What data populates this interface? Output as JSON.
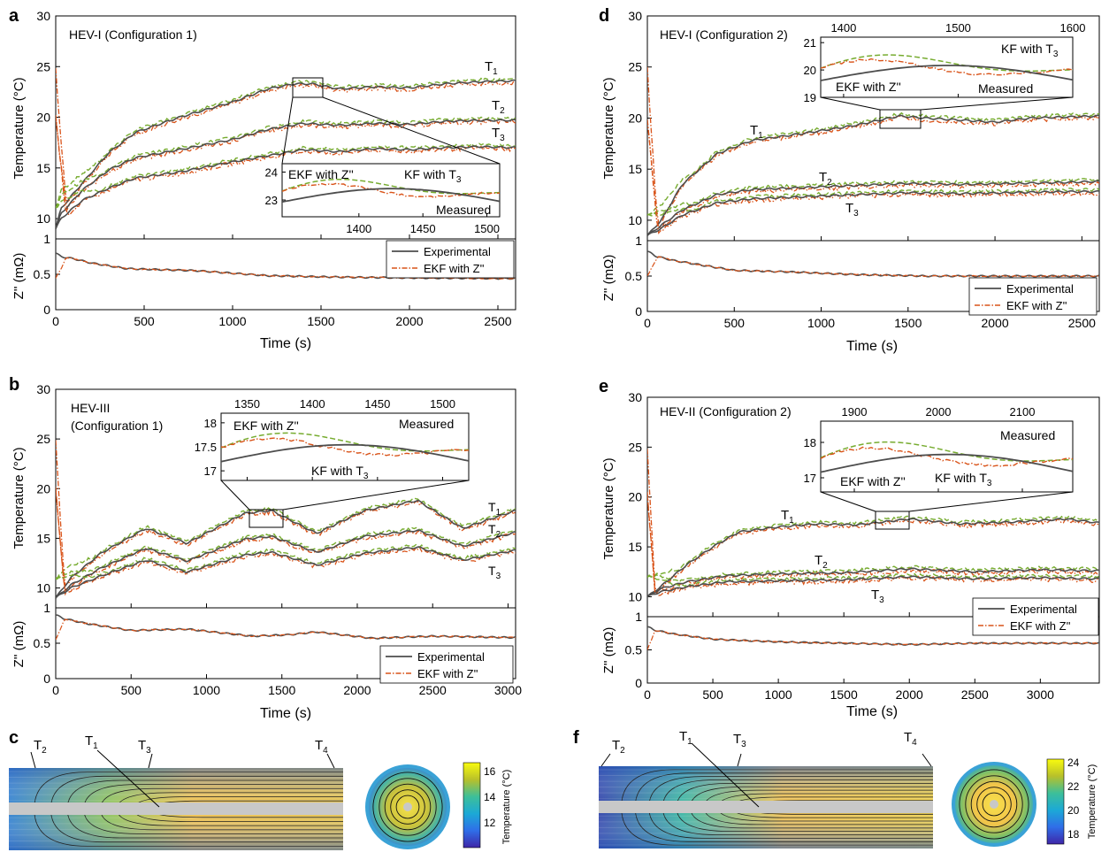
{
  "figure": {
    "panels": {
      "a": {
        "letter": "a",
        "title": "HEV-I (Configuration 1)"
      },
      "b": {
        "letter": "b",
        "title_line1": "HEV-III",
        "title_line2": "(Configuration 1)"
      },
      "d": {
        "letter": "d",
        "title": "HEV-I (Configuration 2)"
      },
      "e": {
        "letter": "e",
        "title": "HEV-II (Configuration 2)"
      },
      "c": {
        "letter": "c",
        "cbar_title": "Temperature (°C)",
        "cbar_ticks": [
          "16",
          "14",
          "12"
        ]
      },
      "f": {
        "letter": "f",
        "cbar_title": "Temperature (°C)",
        "cbar_ticks": [
          "24",
          "22",
          "20",
          "18"
        ]
      }
    },
    "labels": {
      "ylabel_temp": "Temperature (°C)",
      "ylabel_z": "Z'' (mΩ)",
      "xlabel": "Time (s)",
      "legend_experimental": "Experimental",
      "legend_ekf": "EKF with Z''",
      "inset_ekf": "EKF with Z''",
      "inset_kf": "KF with T",
      "inset_kf_sub": "3",
      "inset_measured": "Measured",
      "sensor_T1": "T",
      "sensor_T2": "T",
      "sensor_T3": "T",
      "sensor_T4": "T",
      "sub1": "1",
      "sub2": "2",
      "sub3": "3",
      "sub4": "4"
    },
    "colors": {
      "measured": "#4d4d4d",
      "ekf": "#d95319",
      "kf": "#77ac30",
      "cbar": [
        "#3e26a8",
        "#2f6ee8",
        "#1ca9d6",
        "#3dbf99",
        "#9bbf2f",
        "#e8b92c",
        "#f9fb0e"
      ]
    }
  },
  "chart_data": [
    {
      "panel": "a",
      "type": "line",
      "xlim": [
        0,
        2600
      ],
      "ylim_temp": [
        8,
        30
      ],
      "ylim_z": [
        0,
        1
      ],
      "xticks": [
        0,
        500,
        1000,
        1500,
        2000,
        2500
      ],
      "yticks_temp": [
        10,
        15,
        20,
        25,
        30
      ],
      "yticks_z": [
        0,
        0.5,
        1
      ],
      "series": [
        {
          "name": "T1",
          "x": [
            0,
            30,
            150,
            300,
            450,
            700,
            1000,
            1200,
            1350,
            1450,
            1600,
            1800,
            2000,
            2200,
            2400,
            2600
          ],
          "y": [
            9,
            11,
            13.5,
            16.5,
            18.5,
            20,
            21.5,
            22.8,
            23.3,
            23.3,
            22.8,
            23,
            22.9,
            23.3,
            23.5,
            23.6
          ]
        },
        {
          "name": "T2",
          "x": [
            0,
            30,
            150,
            300,
            450,
            700,
            1000,
            1200,
            1400,
            1600,
            1800,
            2000,
            2200,
            2400,
            2600
          ],
          "y": [
            9,
            10.5,
            12.8,
            14.8,
            16,
            16.8,
            17.8,
            18.8,
            19.4,
            19.2,
            19.4,
            19.3,
            19.6,
            19.7,
            19.7
          ]
        },
        {
          "name": "T3",
          "x": [
            0,
            30,
            150,
            300,
            450,
            700,
            1000,
            1200,
            1400,
            1600,
            1800,
            2000,
            2200,
            2400,
            2600
          ],
          "y": [
            9,
            10,
            11.8,
            13,
            14,
            14.6,
            15.6,
            16.2,
            16.8,
            16.6,
            16.9,
            16.8,
            17,
            17.1,
            17
          ]
        }
      ],
      "z_series": {
        "x": [
          0,
          30,
          100,
          200,
          400,
          800,
          1200,
          1600,
          2000,
          2600
        ],
        "y": [
          0.8,
          0.75,
          0.72,
          0.66,
          0.58,
          0.55,
          0.48,
          0.46,
          0.45,
          0.44
        ]
      },
      "inset": {
        "xlim": [
          1340,
          1510
        ],
        "ylim": [
          22.4,
          24.3
        ],
        "xticks": [
          1400,
          1450,
          1500
        ],
        "yticks": [
          23,
          24
        ]
      }
    },
    {
      "panel": "b",
      "type": "line",
      "xlim": [
        0,
        3050
      ],
      "ylim_temp": [
        8,
        30
      ],
      "ylim_z": [
        0,
        1
      ],
      "xticks": [
        0,
        500,
        1000,
        1500,
        2000,
        2500,
        3000
      ],
      "yticks_temp": [
        10,
        15,
        20,
        25,
        30
      ],
      "yticks_z": [
        0,
        0.5,
        1
      ],
      "series": [
        {
          "name": "T1",
          "x": [
            0,
            100,
            300,
            600,
            870,
            1250,
            1430,
            1730,
            2050,
            2400,
            2700,
            3050
          ],
          "y": [
            9,
            11,
            13.5,
            16,
            14.5,
            17.5,
            17.8,
            15.5,
            17.8,
            18.8,
            16,
            17.8
          ]
        },
        {
          "name": "T2",
          "x": [
            0,
            100,
            300,
            600,
            870,
            1250,
            1430,
            1730,
            2050,
            2400,
            2700,
            3050
          ],
          "y": [
            9,
            10.3,
            12,
            14,
            12.7,
            14.9,
            15.2,
            13.6,
            15.2,
            15.8,
            14.2,
            15.6
          ]
        },
        {
          "name": "T3",
          "x": [
            0,
            100,
            300,
            600,
            870,
            1250,
            1430,
            1730,
            2050,
            2400,
            2700,
            3050
          ],
          "y": [
            9,
            10,
            11.2,
            12.8,
            11.6,
            13.3,
            13.6,
            12.3,
            13.5,
            14.1,
            12.8,
            13.8
          ]
        }
      ],
      "z_series": {
        "x": [
          0,
          50,
          200,
          500,
          870,
          1300,
          1550,
          1730,
          2100,
          2500,
          3050
        ],
        "y": [
          0.9,
          0.85,
          0.78,
          0.68,
          0.7,
          0.6,
          0.62,
          0.66,
          0.57,
          0.6,
          0.58
        ]
      },
      "inset": {
        "xlim": [
          1330,
          1520
        ],
        "ylim": [
          16.8,
          18.2
        ],
        "xticks": [
          1350,
          1400,
          1450,
          1500
        ],
        "yticks": [
          17,
          17.5,
          18
        ]
      }
    },
    {
      "panel": "d",
      "type": "line",
      "xlim": [
        0,
        2600
      ],
      "ylim_temp": [
        8,
        30
      ],
      "ylim_z": [
        0,
        1
      ],
      "xticks": [
        0,
        500,
        1000,
        1500,
        2000,
        2500
      ],
      "yticks_temp": [
        10,
        15,
        20,
        25,
        30
      ],
      "yticks_z": [
        0,
        0.5,
        1
      ],
      "series": [
        {
          "name": "T1",
          "x": [
            0,
            80,
            200,
            400,
            600,
            900,
            1200,
            1450,
            1600,
            1800,
            2000,
            2200,
            2400,
            2600
          ],
          "y": [
            8.5,
            10,
            13.5,
            16.5,
            17.8,
            18.5,
            19.3,
            20.2,
            20,
            19.8,
            19.6,
            20,
            20.1,
            20.2
          ]
        },
        {
          "name": "T2",
          "x": [
            0,
            80,
            200,
            400,
            600,
            900,
            1200,
            1500,
            1800,
            2100,
            2400,
            2600
          ],
          "y": [
            8.5,
            9.5,
            11,
            12.5,
            13,
            13.2,
            13.4,
            13.6,
            13.5,
            13.6,
            13.7,
            13.8
          ]
        },
        {
          "name": "T3",
          "x": [
            0,
            80,
            200,
            400,
            600,
            900,
            1200,
            1500,
            1800,
            2100,
            2400,
            2600
          ],
          "y": [
            8.5,
            9.2,
            10.5,
            11.7,
            12.1,
            12.3,
            12.5,
            12.7,
            12.6,
            12.7,
            12.8,
            12.8
          ]
        }
      ],
      "z_series": {
        "x": [
          0,
          50,
          150,
          300,
          500,
          800,
          1200,
          1600,
          2000,
          2600
        ],
        "y": [
          0.85,
          0.78,
          0.72,
          0.66,
          0.58,
          0.56,
          0.52,
          0.5,
          0.5,
          0.5
        ]
      },
      "inset": {
        "xlim": [
          1380,
          1600
        ],
        "ylim": [
          19,
          21.2
        ],
        "xticks": [
          1400,
          1500,
          1600
        ],
        "yticks": [
          19,
          20,
          21
        ]
      }
    },
    {
      "panel": "e",
      "type": "line",
      "xlim": [
        0,
        3450
      ],
      "ylim_temp": [
        8,
        30
      ],
      "ylim_z": [
        0,
        1
      ],
      "xticks": [
        0,
        500,
        1000,
        1500,
        2000,
        2500,
        3000
      ],
      "yticks_temp": [
        10,
        15,
        20,
        25,
        30
      ],
      "yticks_z": [
        0,
        0.5,
        1
      ],
      "series": [
        {
          "name": "T1",
          "x": [
            0,
            100,
            300,
            500,
            700,
            1000,
            1300,
            1600,
            2000,
            2400,
            2800,
            3200,
            3450
          ],
          "y": [
            10,
            11,
            13.2,
            15,
            16.5,
            17,
            17.3,
            17.2,
            17.8,
            17.3,
            17.5,
            17.8,
            17.4
          ]
        },
        {
          "name": "T2",
          "x": [
            0,
            100,
            300,
            600,
            1000,
            1500,
            2000,
            2500,
            3000,
            3450
          ],
          "y": [
            10,
            10.8,
            11.5,
            12.1,
            12.3,
            12.4,
            12.8,
            12.5,
            12.7,
            12.6
          ]
        },
        {
          "name": "T3",
          "x": [
            0,
            100,
            300,
            600,
            1000,
            1500,
            2000,
            2500,
            3000,
            3450
          ],
          "y": [
            10,
            10.5,
            11,
            11.5,
            11.6,
            11.7,
            12,
            11.8,
            11.9,
            11.8
          ]
        }
      ],
      "z_series": {
        "x": [
          0,
          50,
          200,
          500,
          1000,
          1500,
          2000,
          2500,
          3000,
          3450
        ],
        "y": [
          0.85,
          0.8,
          0.74,
          0.66,
          0.62,
          0.6,
          0.58,
          0.6,
          0.6,
          0.6
        ]
      },
      "inset": {
        "xlim": [
          1860,
          2160
        ],
        "ylim": [
          16.6,
          18.6
        ],
        "xticks": [
          1900,
          2000,
          2100
        ],
        "yticks": [
          17,
          18
        ]
      }
    }
  ]
}
